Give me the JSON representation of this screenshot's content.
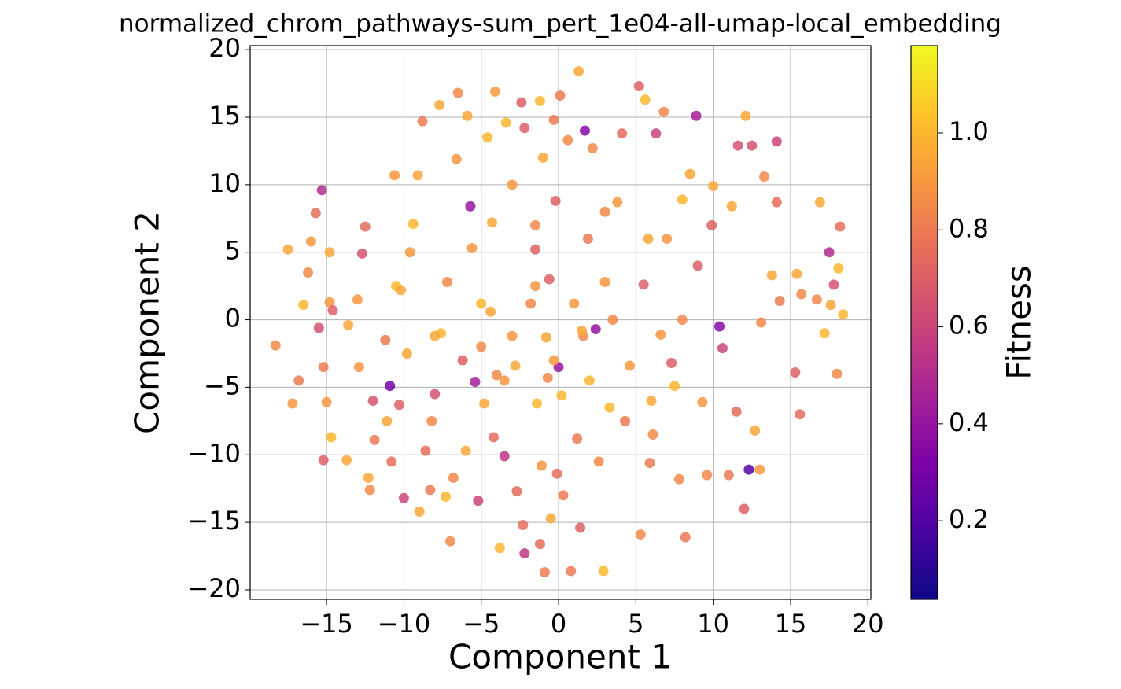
{
  "chart_data": {
    "type": "scatter",
    "title": "normalized_chrom_pathways-sum_pert_1e04-all-umap-local_embedding",
    "xlabel": "Component 1",
    "ylabel": "Component 2",
    "colorbar_label": "Fitness",
    "colormap": "plasma",
    "grid": true,
    "xlim": [
      -19.94,
      20.19
    ],
    "ylim": [
      -20.7,
      20.3
    ],
    "clim": [
      0.038,
      1.18
    ],
    "xticks": [
      {
        "value": -15,
        "label": "−15"
      },
      {
        "value": -10,
        "label": "−10"
      },
      {
        "value": -5,
        "label": "−5"
      },
      0,
      5,
      10,
      15,
      20
    ],
    "yticks": [
      {
        "value": -20,
        "label": "−20"
      },
      {
        "value": -15,
        "label": "−15"
      },
      {
        "value": -10,
        "label": "−10"
      },
      {
        "value": -5,
        "label": "−5"
      },
      0,
      5,
      10,
      15,
      20
    ],
    "cticks": [
      0.2,
      0.4,
      0.6,
      0.8,
      {
        "value": 1,
        "label": "1.0"
      }
    ],
    "x": [
      -18.3,
      -17.5,
      -17.2,
      -16.8,
      -16.5,
      -16.2,
      -16,
      -15.7,
      -15.5,
      -15.3,
      -15.2,
      -15.2,
      -15,
      -14.8,
      -14.8,
      -14.6,
      -14.7,
      -13.7,
      -13.6,
      -13,
      -12.9,
      -12.7,
      -12.5,
      -12.3,
      -12.2,
      -12,
      -11.9,
      -11.2,
      -11.1,
      -10.9,
      -10.8,
      -10.6,
      -10.5,
      -10.3,
      -10,
      -9.8,
      -9.6,
      -9.4,
      -9.1,
      -9,
      -8.8,
      -8.6,
      -8.3,
      -8.2,
      -8,
      -7.7,
      -7.6,
      -7.3,
      -7.2,
      -7,
      -6.8,
      -6.6,
      -6.5,
      -6.2,
      -6,
      -5.9,
      -5.7,
      -5.6,
      -5.4,
      -5.2,
      -5,
      -4.8,
      -4.6,
      -4.4,
      -4.3,
      -4.2,
      -4.1,
      -4,
      -3.8,
      -3.5,
      -3.4,
      -3,
      -2.8,
      -2.7,
      -2.4,
      -2.3,
      -2.2,
      -2.2,
      -1.8,
      -1.5,
      -1.5,
      -1.4,
      -1.2,
      -1.2,
      -1.1,
      -1,
      -0.9,
      -0.8,
      -0.7,
      -0.6,
      -0.5,
      -0.3,
      -0.2,
      -0.1,
      0.1,
      0.2,
      0.3,
      0.6,
      0.8,
      1,
      1.2,
      1.3,
      1.4,
      1.6,
      1.7,
      1.9,
      2,
      2.2,
      2.4,
      2.6,
      2.9,
      3,
      3.3,
      3.8,
      4.1,
      4.3,
      4.6,
      5.2,
      5.3,
      5.5,
      5.6,
      5.8,
      5.9,
      6.1,
      6.3,
      6.6,
      6.8,
      7.3,
      7.5,
      7.8,
      8,
      8.2,
      8.5,
      8.9,
      9,
      9.3,
      9.6,
      9.9,
      10,
      10.4,
      10.6,
      11,
      11.2,
      11.5,
      11.6,
      12.1,
      12,
      12.3,
      12.5,
      12.7,
      13,
      13.1,
      13.3,
      13.8,
      14.1,
      14.1,
      14.3,
      15.3,
      15.4,
      15.6,
      15.7,
      16.7,
      16.9,
      17.2,
      17.5,
      17.6,
      17.8,
      18,
      18.1,
      18.2,
      18.4,
      -3,
      3.5,
      0,
      -8,
      -3.5,
      8,
      -5,
      6,
      -10.2,
      7,
      3,
      -0.3,
      1.5,
      -1.5
    ],
    "values": [
      -1.9,
      5.2,
      -6.2,
      -4.5,
      1.1,
      3.5,
      5.8,
      7.9,
      -0.6,
      9.6,
      -3.5,
      -10.4,
      -6.1,
      5,
      1.3,
      0.7,
      -8.7,
      -10.4,
      -0.4,
      1.5,
      -3.5,
      4.9,
      6.9,
      -11.7,
      -12.6,
      -6,
      -8.9,
      -1.5,
      -7.5,
      -4.9,
      -10.5,
      10.7,
      2.5,
      -6.3,
      -13.2,
      -2.5,
      5,
      7.1,
      10.7,
      -14.2,
      14.7,
      -9.7,
      -12.6,
      -7.5,
      -5.5,
      15.9,
      -1,
      -13.1,
      2.8,
      -16.4,
      -11.7,
      11.9,
      16.8,
      -3,
      -9.7,
      15.1,
      8.4,
      5.3,
      -4.6,
      -13.4,
      1.2,
      -6.2,
      13.5,
      0.6,
      7.2,
      -8.7,
      16.9,
      -4.1,
      -16.9,
      -10.1,
      14.6,
      10,
      -3.4,
      -12.7,
      16.1,
      -15.2,
      14.2,
      -17.3,
      1.2,
      5.2,
      7,
      -6.2,
      16.2,
      -16.6,
      -10.8,
      12,
      -18.7,
      -1.3,
      -4.3,
      3,
      -14.7,
      14.8,
      8.8,
      -11.4,
      16.6,
      -5.6,
      -13,
      13.3,
      -18.6,
      1.2,
      -8.8,
      18.4,
      -15.4,
      -1.2,
      14,
      6,
      -4.5,
      12.7,
      -0.7,
      -10.5,
      -18.6,
      2.8,
      -6.5,
      8.7,
      13.8,
      -7.5,
      -3.4,
      17.3,
      -15.9,
      2.6,
      16.3,
      6,
      -10.6,
      -8.5,
      13.8,
      -1.1,
      15.4,
      -3.2,
      -4.9,
      -11.8,
      8.9,
      -16.1,
      10.8,
      15.1,
      4,
      -6.1,
      -11.5,
      7,
      9.9,
      -0.5,
      -2.1,
      -11.5,
      8.4,
      -6.8,
      12.9,
      15.1,
      -14,
      -11.1,
      12.9,
      -8.2,
      -11.1,
      -0.2,
      10.6,
      3.3,
      8.7,
      13.2,
      1.4,
      -3.9,
      3.4,
      -7,
      1.9,
      1.5,
      8.7,
      -1,
      5,
      1.1,
      2.6,
      -4,
      3.8,
      6.9,
      0.4,
      -1.2,
      0,
      -3.5,
      -1.2,
      -4.5,
      0,
      -2,
      -6,
      2.2,
      6,
      8,
      -3,
      -0.8,
      2.5
    ],
    "fitness": [
      0.85,
      0.95,
      0.9,
      0.8,
      1.0,
      0.85,
      0.9,
      0.75,
      0.65,
      0.5,
      0.8,
      0.7,
      0.9,
      0.95,
      0.9,
      0.7,
      1.0,
      0.95,
      0.95,
      0.9,
      0.9,
      0.65,
      0.75,
      0.95,
      0.85,
      0.65,
      0.8,
      0.8,
      0.95,
      0.3,
      0.75,
      0.9,
      1.0,
      0.7,
      0.6,
      0.95,
      0.9,
      1.0,
      0.95,
      0.95,
      0.8,
      0.75,
      0.8,
      0.85,
      0.65,
      0.95,
      1.0,
      1.0,
      0.85,
      0.85,
      0.85,
      0.9,
      0.85,
      0.7,
      0.95,
      0.95,
      0.4,
      0.9,
      0.45,
      0.6,
      1.0,
      0.95,
      1.0,
      0.95,
      0.95,
      0.75,
      0.9,
      0.85,
      1.0,
      0.55,
      1.0,
      0.9,
      0.95,
      0.75,
      0.7,
      0.75,
      0.7,
      0.55,
      0.85,
      0.7,
      0.85,
      1.0,
      1.0,
      0.75,
      0.9,
      0.95,
      0.8,
      0.95,
      0.85,
      0.7,
      0.95,
      0.8,
      0.7,
      0.75,
      0.8,
      1.0,
      0.8,
      0.85,
      0.8,
      0.9,
      0.8,
      0.95,
      0.7,
      0.85,
      0.35,
      0.8,
      1.0,
      0.85,
      0.4,
      0.85,
      1.0,
      0.9,
      1.0,
      0.9,
      0.75,
      0.8,
      0.9,
      0.7,
      0.85,
      0.7,
      1.0,
      0.95,
      0.8,
      0.85,
      0.6,
      0.9,
      0.85,
      0.7,
      1.0,
      0.85,
      1.0,
      0.8,
      0.95,
      0.45,
      0.7,
      0.9,
      0.85,
      0.7,
      0.95,
      0.35,
      0.6,
      0.8,
      0.95,
      0.75,
      0.65,
      0.95,
      0.7,
      0.2,
      0.65,
      0.95,
      0.9,
      0.85,
      0.85,
      0.95,
      0.75,
      0.6,
      0.8,
      0.7,
      0.95,
      0.75,
      0.85,
      0.85,
      0.95,
      1.0,
      0.5,
      0.95,
      0.65,
      0.85,
      1.0,
      0.75,
      1.0,
      0.9,
      0.85,
      0.4,
      0.95,
      0.9,
      0.85,
      0.85,
      0.95,
      0.95,
      0.9,
      0.85,
      0.9,
      0.95,
      0.9
    ]
  }
}
